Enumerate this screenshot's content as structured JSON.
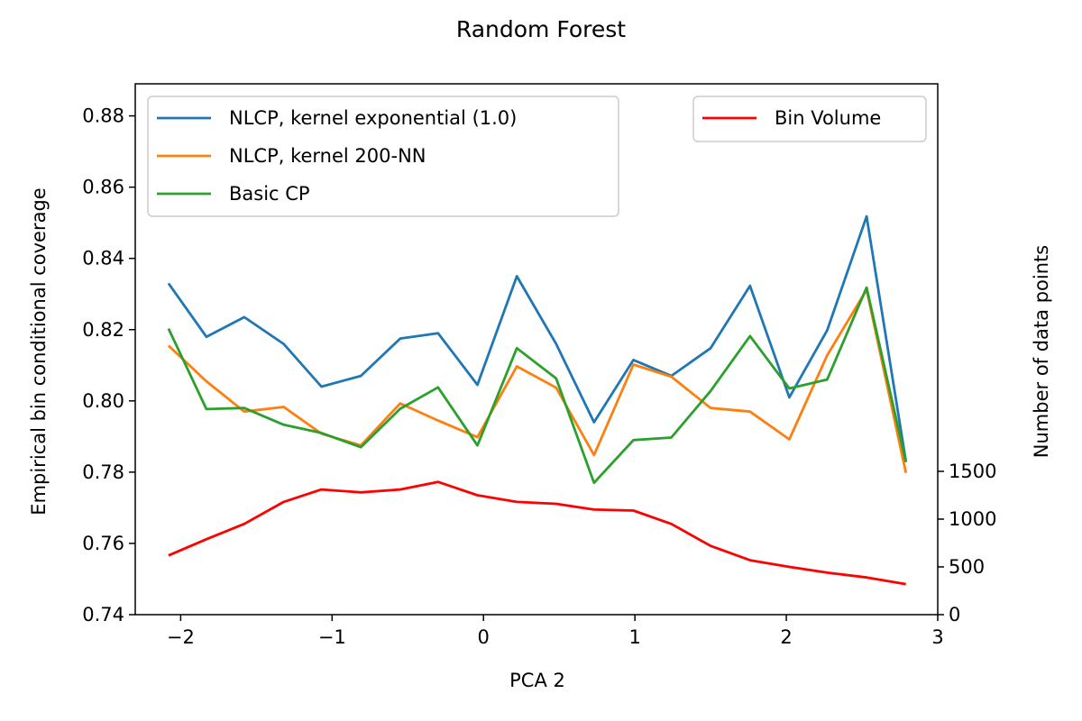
{
  "chart_data": {
    "type": "line",
    "title": "Random Forest",
    "xlabel": "PCA 2",
    "ylabel": "Empirical bin conditional coverage",
    "ylabel_right": "Number of data points",
    "xlim": [
      -2.3,
      3.0
    ],
    "ylim": [
      0.74,
      0.889
    ],
    "ylim_right": [
      0,
      1500
    ],
    "x_ticks": [
      -2,
      -1,
      0,
      1,
      2,
      3
    ],
    "x_tick_labels": [
      "−2",
      "−1",
      "0",
      "1",
      "2",
      "3"
    ],
    "y_ticks": [
      0.74,
      0.76,
      0.78,
      0.8,
      0.82,
      0.84,
      0.86,
      0.88
    ],
    "y_tick_labels": [
      "0.74",
      "0.76",
      "0.78",
      "0.80",
      "0.82",
      "0.84",
      "0.86",
      "0.88"
    ],
    "y_right_ticks": [
      0,
      500,
      1000,
      1500
    ],
    "y_right_tick_labels": [
      "0",
      "500",
      "1000",
      "1500"
    ],
    "x": [
      -2.08,
      -1.83,
      -1.58,
      -1.32,
      -1.07,
      -0.81,
      -0.55,
      -0.3,
      -0.04,
      0.22,
      0.48,
      0.73,
      0.99,
      1.24,
      1.5,
      1.76,
      2.02,
      2.27,
      2.53,
      2.79
    ],
    "series": [
      {
        "name": "NLCP, kernel exponential (1.0)",
        "color": "#1f77b4",
        "axis": "left",
        "values": [
          0.833,
          0.818,
          0.8235,
          0.816,
          0.804,
          0.807,
          0.8175,
          0.819,
          0.8045,
          0.835,
          0.816,
          0.794,
          0.8115,
          0.807,
          0.8148,
          0.8323,
          0.801,
          0.8198,
          0.8518,
          0.783
        ]
      },
      {
        "name": "NLCP, kernel 200-NN",
        "color": "#ff7f0e",
        "axis": "left",
        "values": [
          0.8155,
          0.8055,
          0.797,
          0.7983,
          0.7908,
          0.7875,
          0.7993,
          0.7945,
          0.7898,
          0.8097,
          0.8037,
          0.7848,
          0.8102,
          0.8068,
          0.798,
          0.797,
          0.7892,
          0.8128,
          0.8312,
          0.7798
        ]
      },
      {
        "name": "Basic CP",
        "color": "#2ca02c",
        "axis": "left",
        "values": [
          0.8203,
          0.7977,
          0.798,
          0.7933,
          0.791,
          0.787,
          0.7978,
          0.8038,
          0.7875,
          0.8148,
          0.8063,
          0.777,
          0.789,
          0.7897,
          0.8028,
          0.8182,
          0.8035,
          0.806,
          0.8318,
          0.7828
        ]
      },
      {
        "name": "Bin Volume",
        "color": "#ff0000",
        "axis": "right",
        "values": [
          620,
          790,
          950,
          1180,
          1310,
          1280,
          1310,
          1390,
          1250,
          1180,
          1160,
          1100,
          1090,
          950,
          720,
          570,
          500,
          440,
          390,
          320
        ]
      }
    ],
    "legend_left": [
      "NLCP, kernel exponential (1.0)",
      "NLCP, kernel 200-NN",
      "Basic CP"
    ],
    "legend_right": [
      "Bin Volume"
    ],
    "legend_placement": "top-left (coverage series), top-right (bin volume)",
    "grid": false
  }
}
